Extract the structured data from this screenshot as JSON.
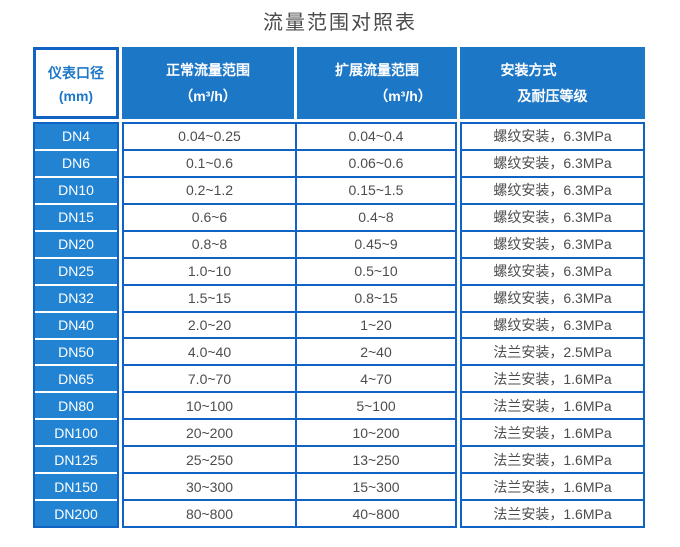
{
  "title": "流量范围对照表",
  "colors": {
    "border_blue": "#1063c2",
    "header_blue": "#1d77c7",
    "row_label_blue": "#2283d3",
    "data_text": "#4d4d4d",
    "title_text": "#4a4a4a"
  },
  "table": {
    "headers": {
      "col1_line1": "仪表口径",
      "col1_line2": "(mm)",
      "col2_line1": "正常流量范围",
      "col2_line2": "（m³/h）",
      "col3_line1": "扩展流量范围",
      "col3_line2": "（m³/h）",
      "col4_line1": "安装方式",
      "col4_line2": "及耐压等级"
    },
    "rows": [
      {
        "dn": "DN4",
        "normal": "0.04~0.25",
        "extended": "0.04~0.4",
        "install": "螺纹安装，6.3MPa"
      },
      {
        "dn": "DN6",
        "normal": "0.1~0.6",
        "extended": "0.06~0.6",
        "install": "螺纹安装，6.3MPa"
      },
      {
        "dn": "DN10",
        "normal": "0.2~1.2",
        "extended": "0.15~1.5",
        "install": "螺纹安装，6.3MPa"
      },
      {
        "dn": "DN15",
        "normal": "0.6~6",
        "extended": "0.4~8",
        "install": "螺纹安装，6.3MPa"
      },
      {
        "dn": "DN20",
        "normal": "0.8~8",
        "extended": "0.45~9",
        "install": "螺纹安装，6.3MPa"
      },
      {
        "dn": "DN25",
        "normal": "1.0~10",
        "extended": "0.5~10",
        "install": "螺纹安装，6.3MPa"
      },
      {
        "dn": "DN32",
        "normal": "1.5~15",
        "extended": "0.8~15",
        "install": "螺纹安装，6.3MPa"
      },
      {
        "dn": "DN40",
        "normal": "2.0~20",
        "extended": "1~20",
        "install": "螺纹安装，6.3MPa"
      },
      {
        "dn": "DN50",
        "normal": "4.0~40",
        "extended": "2~40",
        "install": "法兰安装，2.5MPa"
      },
      {
        "dn": "DN65",
        "normal": "7.0~70",
        "extended": "4~70",
        "install": "法兰安装，1.6MPa"
      },
      {
        "dn": "DN80",
        "normal": "10~100",
        "extended": "5~100",
        "install": "法兰安装，1.6MPa"
      },
      {
        "dn": "DN100",
        "normal": "20~200",
        "extended": "10~200",
        "install": "法兰安装，1.6MPa"
      },
      {
        "dn": "DN125",
        "normal": "25~250",
        "extended": "13~250",
        "install": "法兰安装，1.6MPa"
      },
      {
        "dn": "DN150",
        "normal": "30~300",
        "extended": "15~300",
        "install": "法兰安装，1.6MPa"
      },
      {
        "dn": "DN200",
        "normal": "80~800",
        "extended": "40~800",
        "install": "法兰安装，1.6MPa"
      }
    ]
  },
  "chart_data": {
    "type": "table",
    "title": "流量范围对照表",
    "columns": [
      "仪表口径 (mm)",
      "正常流量范围 （m³/h）",
      "扩展流量范围 （m³/h）",
      "安装方式 及耐压等级"
    ],
    "rows": [
      [
        "DN4",
        "0.04~0.25",
        "0.04~0.4",
        "螺纹安装，6.3MPa"
      ],
      [
        "DN6",
        "0.1~0.6",
        "0.06~0.6",
        "螺纹安装，6.3MPa"
      ],
      [
        "DN10",
        "0.2~1.2",
        "0.15~1.5",
        "螺纹安装，6.3MPa"
      ],
      [
        "DN15",
        "0.6~6",
        "0.4~8",
        "螺纹安装，6.3MPa"
      ],
      [
        "DN20",
        "0.8~8",
        "0.45~9",
        "螺纹安装，6.3MPa"
      ],
      [
        "DN25",
        "1.0~10",
        "0.5~10",
        "螺纹安装，6.3MPa"
      ],
      [
        "DN32",
        "1.5~15",
        "0.8~15",
        "螺纹安装，6.3MPa"
      ],
      [
        "DN40",
        "2.0~20",
        "1~20",
        "螺纹安装，6.3MPa"
      ],
      [
        "DN50",
        "4.0~40",
        "2~40",
        "法兰安装，2.5MPa"
      ],
      [
        "DN65",
        "7.0~70",
        "4~70",
        "法兰安装，1.6MPa"
      ],
      [
        "DN80",
        "10~100",
        "5~100",
        "法兰安装，1.6MPa"
      ],
      [
        "DN100",
        "20~200",
        "10~200",
        "法兰安装，1.6MPa"
      ],
      [
        "DN125",
        "25~250",
        "13~250",
        "法兰安装，1.6MPa"
      ],
      [
        "DN150",
        "30~300",
        "15~300",
        "法兰安装，1.6MPa"
      ],
      [
        "DN200",
        "80~800",
        "40~800",
        "法兰安装，1.6MPa"
      ]
    ]
  }
}
